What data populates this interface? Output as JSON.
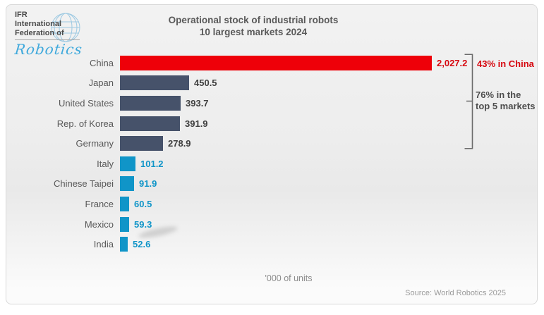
{
  "logo": {
    "line1": "IFR",
    "line2": "International",
    "line3": "Federation of",
    "script": "Robotics"
  },
  "title": {
    "line1": "Operational stock of industrial robots",
    "line2": "10 largest markets 2024"
  },
  "annotations": {
    "china_share": "43% in China",
    "top5_line1": "76% in the",
    "top5_line2": "top 5 markets"
  },
  "footer": {
    "units": "'000 of units",
    "source": "Source: World Robotics 2025"
  },
  "colors": {
    "china_red": "#ee0009",
    "china_value_red": "#d6070f",
    "slate": "#46526a",
    "teal": "#1095c8",
    "dark_value": "#3f3f3f",
    "label_gray": "#595959"
  },
  "chart_data": {
    "type": "bar",
    "orientation": "horizontal",
    "title": "Operational stock of industrial robots — 10 largest markets 2024",
    "xlabel": "'000 of units",
    "ylabel": "",
    "xlim": [
      0,
      2100
    ],
    "grid": false,
    "legend": "none",
    "categories": [
      "China",
      "Japan",
      "United States",
      "Rep. of Korea",
      "Germany",
      "Italy",
      "Chinese Taipei",
      "France",
      "Mexico",
      "India"
    ],
    "values": [
      2027.2,
      450.5,
      393.7,
      391.9,
      278.9,
      101.2,
      91.9,
      60.5,
      59.3,
      52.6
    ],
    "value_labels": [
      "2,027.2",
      "450.5",
      "393.7",
      "391.9",
      "278.9",
      "101.2",
      "91.9",
      "60.5",
      "59.3",
      "52.6"
    ],
    "bar_colors": [
      "#ee0009",
      "#46526a",
      "#46526a",
      "#46526a",
      "#46526a",
      "#1095c8",
      "#1095c8",
      "#1095c8",
      "#1095c8",
      "#1095c8"
    ],
    "value_label_colors": [
      "#d6070f",
      "#3f3f3f",
      "#3f3f3f",
      "#3f3f3f",
      "#3f3f3f",
      "#1095c8",
      "#1095c8",
      "#1095c8",
      "#1095c8",
      "#1095c8"
    ],
    "annotations": [
      "43% in China (bracket over China bar)",
      "76% in the top 5 markets (bracket over top 5 bars)"
    ],
    "source": "Source: World Robotics 2025"
  }
}
